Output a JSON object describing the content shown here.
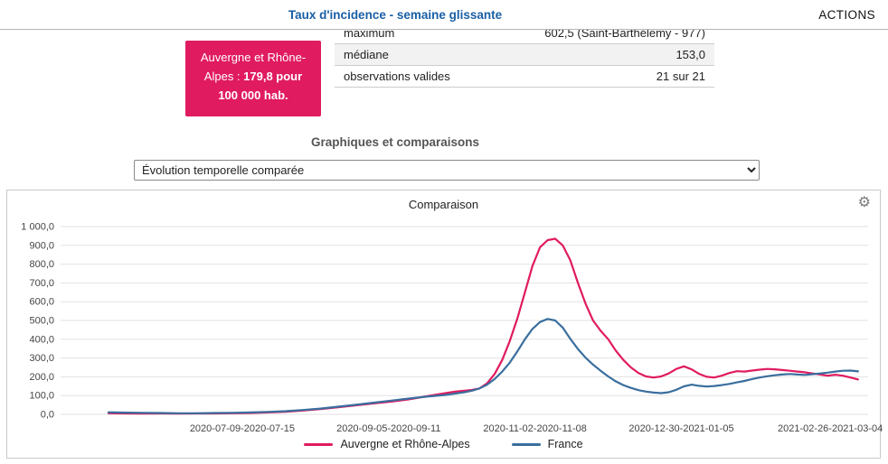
{
  "header": {
    "title": "Taux d'incidence - semaine glissante",
    "actions_label": "ACTIONS"
  },
  "badge": {
    "prefix": "Auvergne et Rhône-Alpes : ",
    "value": "179,8 pour 100 000 hab."
  },
  "stats": {
    "rows": [
      {
        "label": "maximum",
        "value": "602,5 (Saint-Barthélemy - 977)"
      },
      {
        "label": "médiane",
        "value": "153,0"
      },
      {
        "label": "observations valides",
        "value": "21 sur 21"
      }
    ]
  },
  "section": {
    "title": "Graphiques et comparaisons"
  },
  "controls": {
    "dropdown_value": "Évolution temporelle comparée"
  },
  "panel": {
    "title": "Comparaison",
    "gear_icon": "⚙"
  },
  "colors": {
    "title_blue": "#1a5fa5",
    "accent_pink": "#e01b60",
    "france_blue": "#3a6e9e",
    "grid_gray": "#e2e2e2"
  },
  "chart_data": {
    "type": "line",
    "title": "Comparaison",
    "xlabel": "",
    "ylabel": "",
    "ylim": [
      0,
      1000
    ],
    "grid": "horizontal",
    "legend_position": "bottom",
    "x_range": [
      "2020-05-01",
      "2021-03-17"
    ],
    "y_ticks": [
      {
        "value": 0,
        "label": "0,0"
      },
      {
        "value": 100,
        "label": "100,0"
      },
      {
        "value": 200,
        "label": "200,0"
      },
      {
        "value": 300,
        "label": "300,0"
      },
      {
        "value": 400,
        "label": "400,0"
      },
      {
        "value": 500,
        "label": "500,0"
      },
      {
        "value": 600,
        "label": "600,0"
      },
      {
        "value": 700,
        "label": "700,0"
      },
      {
        "value": 800,
        "label": "800,0"
      },
      {
        "value": 900,
        "label": "900,0"
      },
      {
        "value": 1000,
        "label": "1 000,0"
      }
    ],
    "x_ticks": [
      {
        "date": "2020-07-12",
        "label": "2020-07-09-2020-07-15"
      },
      {
        "date": "2020-09-08",
        "label": "2020-09-05-2020-09-11"
      },
      {
        "date": "2020-11-05",
        "label": "2020-11-02-2020-11-08"
      },
      {
        "date": "2021-01-02",
        "label": "2020-12-30-2021-01-05"
      },
      {
        "date": "2021-03-02",
        "label": "2021-02-26-2021-03-04"
      }
    ],
    "series": [
      {
        "name": "Auvergne et Rhône-Alpes",
        "color": "#e01b60",
        "points": [
          [
            "2020-05-20",
            6
          ],
          [
            "2020-05-27",
            5
          ],
          [
            "2020-06-03",
            4
          ],
          [
            "2020-06-10",
            5
          ],
          [
            "2020-06-17",
            4
          ],
          [
            "2020-06-24",
            5
          ],
          [
            "2020-07-01",
            5
          ],
          [
            "2020-07-08",
            6
          ],
          [
            "2020-07-15",
            7
          ],
          [
            "2020-07-22",
            10
          ],
          [
            "2020-07-29",
            14
          ],
          [
            "2020-08-05",
            20
          ],
          [
            "2020-08-12",
            28
          ],
          [
            "2020-08-19",
            38
          ],
          [
            "2020-08-26",
            48
          ],
          [
            "2020-09-02",
            58
          ],
          [
            "2020-09-09",
            68
          ],
          [
            "2020-09-16",
            80
          ],
          [
            "2020-09-23",
            96
          ],
          [
            "2020-09-30",
            112
          ],
          [
            "2020-10-04",
            120
          ],
          [
            "2020-10-08",
            126
          ],
          [
            "2020-10-11",
            130
          ],
          [
            "2020-10-14",
            138
          ],
          [
            "2020-10-17",
            165
          ],
          [
            "2020-10-20",
            215
          ],
          [
            "2020-10-23",
            290
          ],
          [
            "2020-10-26",
            390
          ],
          [
            "2020-10-29",
            510
          ],
          [
            "2020-11-01",
            650
          ],
          [
            "2020-11-04",
            790
          ],
          [
            "2020-11-07",
            890
          ],
          [
            "2020-11-10",
            928
          ],
          [
            "2020-11-13",
            935
          ],
          [
            "2020-11-16",
            900
          ],
          [
            "2020-11-19",
            820
          ],
          [
            "2020-11-22",
            700
          ],
          [
            "2020-11-25",
            590
          ],
          [
            "2020-11-28",
            500
          ],
          [
            "2020-12-01",
            445
          ],
          [
            "2020-12-04",
            400
          ],
          [
            "2020-12-07",
            340
          ],
          [
            "2020-12-10",
            290
          ],
          [
            "2020-12-13",
            250
          ],
          [
            "2020-12-16",
            220
          ],
          [
            "2020-12-19",
            202
          ],
          [
            "2020-12-22",
            196
          ],
          [
            "2020-12-25",
            202
          ],
          [
            "2020-12-28",
            218
          ],
          [
            "2020-12-31",
            242
          ],
          [
            "2021-01-03",
            256
          ],
          [
            "2021-01-06",
            240
          ],
          [
            "2021-01-09",
            216
          ],
          [
            "2021-01-12",
            200
          ],
          [
            "2021-01-15",
            196
          ],
          [
            "2021-01-18",
            206
          ],
          [
            "2021-01-21",
            220
          ],
          [
            "2021-01-24",
            230
          ],
          [
            "2021-01-27",
            228
          ],
          [
            "2021-01-30",
            233
          ],
          [
            "2021-02-02",
            238
          ],
          [
            "2021-02-05",
            242
          ],
          [
            "2021-02-08",
            240
          ],
          [
            "2021-02-11",
            236
          ],
          [
            "2021-02-14",
            232
          ],
          [
            "2021-02-17",
            228
          ],
          [
            "2021-02-20",
            224
          ],
          [
            "2021-02-23",
            218
          ],
          [
            "2021-02-26",
            212
          ],
          [
            "2021-03-01",
            206
          ],
          [
            "2021-03-04",
            211
          ],
          [
            "2021-03-07",
            206
          ],
          [
            "2021-03-10",
            196
          ],
          [
            "2021-03-13",
            186
          ]
        ]
      },
      {
        "name": "France",
        "color": "#3a6e9e",
        "points": [
          [
            "2020-05-20",
            11
          ],
          [
            "2020-05-27",
            9
          ],
          [
            "2020-06-03",
            8
          ],
          [
            "2020-06-10",
            7
          ],
          [
            "2020-06-17",
            6
          ],
          [
            "2020-06-24",
            6
          ],
          [
            "2020-07-01",
            7
          ],
          [
            "2020-07-08",
            8
          ],
          [
            "2020-07-15",
            10
          ],
          [
            "2020-07-22",
            13
          ],
          [
            "2020-07-29",
            17
          ],
          [
            "2020-08-05",
            23
          ],
          [
            "2020-08-12",
            31
          ],
          [
            "2020-08-19",
            41
          ],
          [
            "2020-08-26",
            51
          ],
          [
            "2020-09-02",
            62
          ],
          [
            "2020-09-09",
            73
          ],
          [
            "2020-09-16",
            84
          ],
          [
            "2020-09-23",
            94
          ],
          [
            "2020-09-30",
            103
          ],
          [
            "2020-10-04",
            110
          ],
          [
            "2020-10-08",
            118
          ],
          [
            "2020-10-11",
            126
          ],
          [
            "2020-10-14",
            138
          ],
          [
            "2020-10-17",
            158
          ],
          [
            "2020-10-20",
            188
          ],
          [
            "2020-10-23",
            228
          ],
          [
            "2020-10-26",
            275
          ],
          [
            "2020-10-29",
            335
          ],
          [
            "2020-11-01",
            400
          ],
          [
            "2020-11-04",
            455
          ],
          [
            "2020-11-07",
            492
          ],
          [
            "2020-11-10",
            508
          ],
          [
            "2020-11-13",
            500
          ],
          [
            "2020-11-16",
            462
          ],
          [
            "2020-11-19",
            402
          ],
          [
            "2020-11-22",
            348
          ],
          [
            "2020-11-25",
            302
          ],
          [
            "2020-11-28",
            265
          ],
          [
            "2020-12-01",
            232
          ],
          [
            "2020-12-04",
            202
          ],
          [
            "2020-12-07",
            176
          ],
          [
            "2020-12-10",
            156
          ],
          [
            "2020-12-13",
            141
          ],
          [
            "2020-12-16",
            129
          ],
          [
            "2020-12-19",
            121
          ],
          [
            "2020-12-22",
            116
          ],
          [
            "2020-12-25",
            113
          ],
          [
            "2020-12-28",
            118
          ],
          [
            "2020-12-31",
            131
          ],
          [
            "2021-01-03",
            149
          ],
          [
            "2021-01-06",
            158
          ],
          [
            "2021-01-09",
            152
          ],
          [
            "2021-01-12",
            148
          ],
          [
            "2021-01-15",
            151
          ],
          [
            "2021-01-18",
            156
          ],
          [
            "2021-01-21",
            162
          ],
          [
            "2021-01-24",
            170
          ],
          [
            "2021-01-27",
            178
          ],
          [
            "2021-01-30",
            188
          ],
          [
            "2021-02-02",
            196
          ],
          [
            "2021-02-05",
            203
          ],
          [
            "2021-02-08",
            208
          ],
          [
            "2021-02-11",
            212
          ],
          [
            "2021-02-14",
            215
          ],
          [
            "2021-02-17",
            212
          ],
          [
            "2021-02-20",
            210
          ],
          [
            "2021-02-23",
            214
          ],
          [
            "2021-02-26",
            218
          ],
          [
            "2021-03-01",
            222
          ],
          [
            "2021-03-04",
            228
          ],
          [
            "2021-03-07",
            232
          ],
          [
            "2021-03-10",
            233
          ],
          [
            "2021-03-13",
            229
          ]
        ]
      }
    ]
  }
}
